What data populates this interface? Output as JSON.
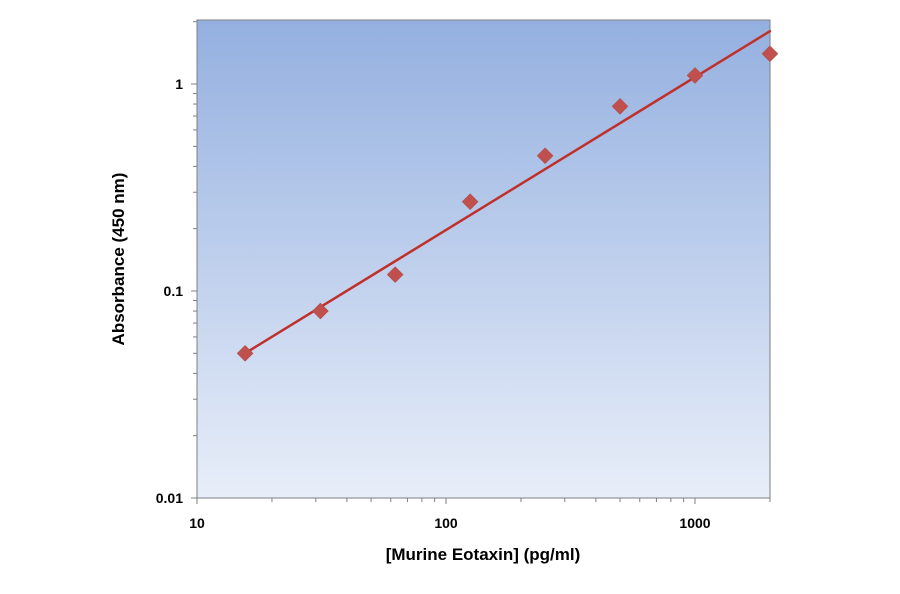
{
  "chart_data": {
    "type": "scatter",
    "title": "",
    "xlabel": "[Murine Eotaxin] (pg/ml)",
    "ylabel": "Absorbance (450 nm)",
    "x_scale": "log",
    "y_scale": "log",
    "xlim": [
      10,
      2000
    ],
    "ylim": [
      0.01,
      2
    ],
    "x_ticks": [
      {
        "value": 10,
        "label": "10"
      },
      {
        "value": 100,
        "label": "100"
      },
      {
        "value": 1000,
        "label": "1000"
      }
    ],
    "y_ticks": [
      {
        "value": 0.01,
        "label": "0.01"
      },
      {
        "value": 0.1,
        "label": "0.1"
      },
      {
        "value": 1,
        "label": "1"
      }
    ],
    "grid": false,
    "legend": "none",
    "series": [
      {
        "marker": "diamond",
        "color": "#c0504d",
        "points": [
          {
            "x": 15.6,
            "y": 0.05
          },
          {
            "x": 31.3,
            "y": 0.08
          },
          {
            "x": 62.5,
            "y": 0.12
          },
          {
            "x": 125,
            "y": 0.27
          },
          {
            "x": 250,
            "y": 0.45
          },
          {
            "x": 500,
            "y": 0.78
          },
          {
            "x": 1000,
            "y": 1.1
          },
          {
            "x": 2000,
            "y": 1.4
          }
        ]
      }
    ],
    "trendline": {
      "type": "power",
      "color": "#c0302a",
      "points": [
        {
          "x": 15.6,
          "y": 0.05
        },
        {
          "x": 2000,
          "y": 1.8
        }
      ]
    },
    "colors": {
      "plot_bg_top": "#94b0e0",
      "plot_bg_bottom": "#e8eef9"
    }
  }
}
